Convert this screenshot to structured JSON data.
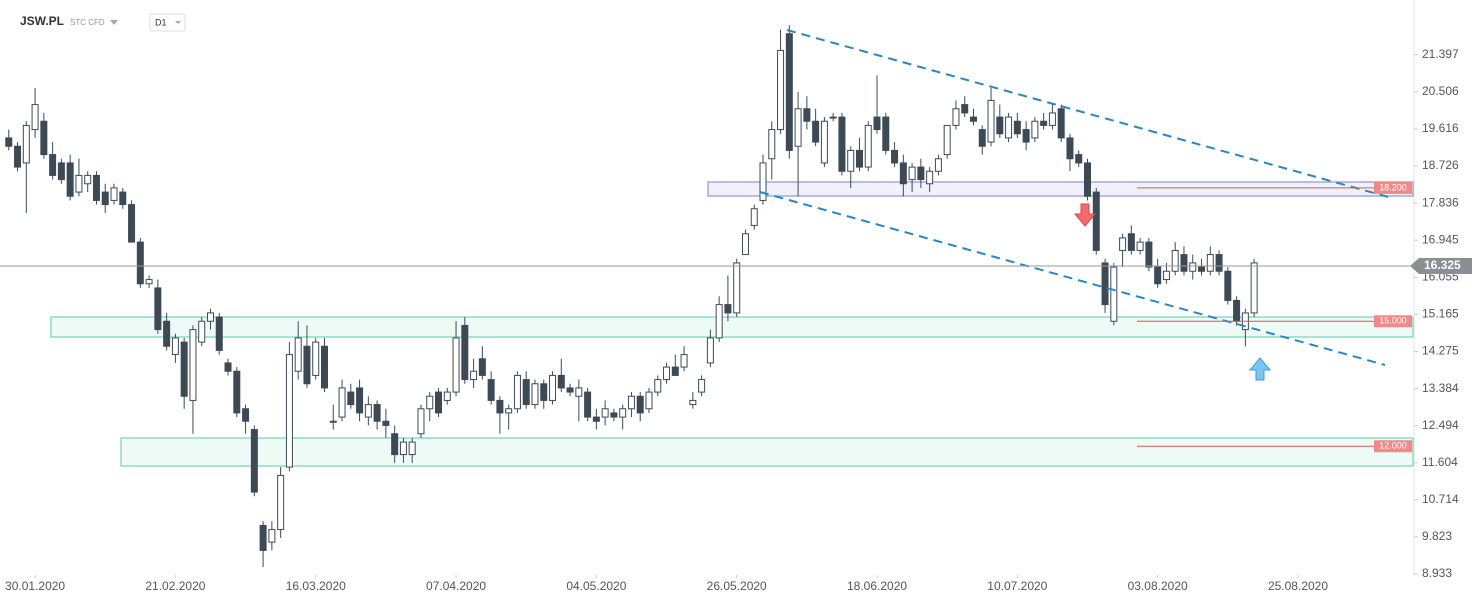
{
  "header": {
    "symbol": "JSW.PL",
    "market": "STC CFD",
    "interval": "D1"
  },
  "chart_data": {
    "type": "candlestick",
    "xlim": [
      -1,
      160
    ],
    "ylim": [
      8.55,
      22.71
    ],
    "xticks": [
      {
        "value": 3,
        "label": "30.01.2020"
      },
      {
        "value": 19,
        "label": "21.02.2020"
      },
      {
        "value": 35,
        "label": "16.03.2020"
      },
      {
        "value": 51,
        "label": "07.04.2020"
      },
      {
        "value": 67,
        "label": "04.05.2020"
      },
      {
        "value": 83,
        "label": "26.05.2020"
      },
      {
        "value": 99,
        "label": "18.06.2020"
      },
      {
        "value": 115,
        "label": "10.07.2020"
      },
      {
        "value": 131,
        "label": "03.08.2020"
      },
      {
        "value": 147,
        "label": "25.08.2020"
      }
    ],
    "yticks": [
      21.397,
      20.506,
      19.616,
      18.726,
      17.836,
      16.945,
      16.055,
      15.165,
      14.275,
      13.384,
      12.494,
      11.604,
      10.714,
      9.823,
      8.933
    ],
    "up_color": "#ffffff",
    "down_color": "#3d4a55",
    "last_price": 16.325,
    "levels": [
      {
        "value": 18.2,
        "label": "18.200"
      },
      {
        "value": 15,
        "label": "15.000"
      },
      {
        "value": 12,
        "label": "12.000"
      }
    ],
    "candles": [
      [
        19.4,
        19.6,
        19.1,
        19.2
      ],
      [
        19.2,
        19.3,
        18.6,
        18.7
      ],
      [
        18.8,
        19.8,
        17.6,
        19.7
      ],
      [
        19.6,
        20.6,
        19.4,
        20.2
      ],
      [
        19.8,
        20.0,
        18.9,
        19.0
      ],
      [
        19.0,
        19.3,
        18.4,
        18.5
      ],
      [
        18.8,
        18.9,
        18.3,
        18.4
      ],
      [
        18.8,
        19.0,
        17.9,
        18.0
      ],
      [
        18.1,
        18.9,
        18.0,
        18.5
      ],
      [
        18.3,
        18.6,
        18.1,
        18.5
      ],
      [
        18.5,
        18.6,
        17.8,
        17.9
      ],
      [
        18.1,
        18.3,
        17.6,
        17.8
      ],
      [
        17.9,
        18.3,
        17.8,
        18.2
      ],
      [
        18.1,
        18.2,
        17.7,
        17.8
      ],
      [
        17.8,
        17.9,
        16.9,
        16.9
      ],
      [
        16.9,
        17.0,
        15.8,
        15.9
      ],
      [
        15.9,
        16.1,
        15.8,
        16.0
      ],
      [
        15.8,
        16.0,
        14.7,
        14.8
      ],
      [
        15.0,
        15.2,
        14.3,
        14.4
      ],
      [
        14.2,
        14.7,
        14.0,
        14.6
      ],
      [
        14.5,
        14.6,
        12.9,
        13.2
      ],
      [
        13.1,
        14.9,
        12.3,
        14.8
      ],
      [
        14.5,
        15.1,
        14.4,
        15.0
      ],
      [
        15.0,
        15.3,
        14.8,
        15.2
      ],
      [
        15.1,
        15.2,
        14.2,
        14.3
      ],
      [
        14.0,
        14.1,
        13.7,
        13.8
      ],
      [
        13.8,
        13.9,
        12.7,
        12.8
      ],
      [
        12.9,
        13.0,
        12.3,
        12.6
      ],
      [
        12.4,
        12.5,
        10.8,
        10.9
      ],
      [
        10.1,
        10.2,
        9.1,
        9.5
      ],
      [
        9.7,
        10.2,
        9.5,
        10.0
      ],
      [
        10.0,
        11.5,
        9.8,
        11.3
      ],
      [
        11.5,
        14.5,
        11.4,
        14.2
      ],
      [
        13.8,
        15.0,
        13.6,
        14.6
      ],
      [
        14.4,
        14.9,
        13.4,
        13.5
      ],
      [
        13.7,
        14.6,
        13.6,
        14.5
      ],
      [
        14.4,
        14.6,
        13.3,
        13.4
      ],
      [
        12.6,
        13.0,
        12.4,
        12.6
      ],
      [
        12.7,
        13.6,
        12.6,
        13.4
      ],
      [
        13.3,
        13.5,
        12.9,
        13.0
      ],
      [
        13.4,
        13.6,
        12.6,
        12.8
      ],
      [
        12.7,
        13.2,
        12.5,
        13.0
      ],
      [
        13.0,
        13.1,
        12.4,
        12.6
      ],
      [
        12.6,
        12.9,
        12.2,
        12.5
      ],
      [
        12.3,
        12.5,
        11.6,
        11.8
      ],
      [
        11.8,
        12.2,
        11.6,
        12.1
      ],
      [
        11.8,
        12.2,
        11.6,
        12.1
      ],
      [
        12.3,
        13.0,
        12.2,
        12.9
      ],
      [
        12.9,
        13.3,
        12.6,
        13.2
      ],
      [
        13.3,
        13.4,
        12.7,
        12.8
      ],
      [
        13.1,
        13.4,
        13.0,
        13.3
      ],
      [
        13.3,
        15.0,
        13.2,
        14.6
      ],
      [
        14.9,
        15.1,
        13.5,
        13.6
      ],
      [
        13.6,
        14.1,
        13.4,
        13.8
      ],
      [
        14.1,
        14.4,
        13.6,
        13.7
      ],
      [
        13.6,
        13.8,
        13.0,
        13.1
      ],
      [
        13.1,
        13.2,
        12.3,
        12.8
      ],
      [
        12.8,
        13.0,
        12.4,
        12.9
      ],
      [
        12.9,
        13.8,
        12.8,
        13.7
      ],
      [
        13.6,
        13.8,
        12.9,
        13.0
      ],
      [
        13.0,
        13.6,
        12.9,
        13.5
      ],
      [
        13.5,
        13.6,
        12.9,
        13.1
      ],
      [
        13.1,
        13.8,
        13.0,
        13.7
      ],
      [
        13.7,
        14.1,
        13.3,
        13.4
      ],
      [
        13.4,
        13.5,
        13.2,
        13.3
      ],
      [
        13.2,
        13.6,
        12.6,
        13.4
      ],
      [
        13.3,
        13.4,
        12.6,
        12.7
      ],
      [
        12.7,
        12.9,
        12.4,
        12.6
      ],
      [
        12.7,
        13.1,
        12.5,
        12.9
      ],
      [
        12.8,
        12.9,
        12.6,
        12.7
      ],
      [
        12.7,
        13.0,
        12.4,
        12.9
      ],
      [
        12.9,
        13.3,
        12.7,
        13.2
      ],
      [
        13.2,
        13.3,
        12.6,
        12.8
      ],
      [
        12.9,
        13.4,
        12.8,
        13.3
      ],
      [
        13.3,
        13.7,
        13.2,
        13.6
      ],
      [
        13.6,
        14.0,
        13.5,
        13.9
      ],
      [
        13.9,
        14.2,
        13.7,
        13.7
      ],
      [
        13.9,
        14.4,
        13.8,
        14.2
      ],
      [
        13.0,
        13.3,
        12.9,
        13.1
      ],
      [
        13.3,
        13.7,
        13.2,
        13.6
      ],
      [
        14.0,
        14.8,
        13.9,
        14.6
      ],
      [
        14.6,
        15.6,
        14.5,
        15.4
      ],
      [
        15.4,
        16.1,
        15.0,
        15.2
      ],
      [
        15.2,
        16.5,
        15.1,
        16.4
      ],
      [
        16.6,
        17.2,
        16.6,
        17.1
      ],
      [
        17.3,
        17.8,
        17.2,
        17.7
      ],
      [
        17.9,
        19.0,
        17.8,
        18.8
      ],
      [
        18.9,
        19.8,
        18.4,
        19.6
      ],
      [
        19.6,
        22.0,
        19.5,
        21.5
      ],
      [
        21.9,
        22.1,
        18.9,
        19.1
      ],
      [
        19.2,
        20.5,
        18.0,
        20.1
      ],
      [
        20.1,
        20.4,
        19.6,
        19.8
      ],
      [
        19.8,
        20.1,
        19.2,
        19.3
      ],
      [
        18.8,
        19.9,
        18.7,
        19.8
      ],
      [
        19.9,
        20.0,
        19.8,
        19.9
      ],
      [
        19.9,
        20.0,
        18.5,
        18.6
      ],
      [
        18.6,
        19.2,
        18.2,
        19.1
      ],
      [
        19.1,
        19.4,
        18.6,
        18.7
      ],
      [
        18.7,
        19.8,
        18.6,
        19.7
      ],
      [
        19.9,
        20.9,
        19.5,
        19.6
      ],
      [
        19.9,
        20.0,
        19.0,
        19.1
      ],
      [
        19.1,
        19.3,
        18.7,
        18.8
      ],
      [
        18.8,
        19.0,
        18.0,
        18.3
      ],
      [
        18.4,
        18.8,
        18.1,
        18.7
      ],
      [
        18.7,
        18.9,
        18.2,
        18.4
      ],
      [
        18.3,
        18.7,
        18.1,
        18.6
      ],
      [
        18.6,
        19.0,
        18.5,
        18.9
      ],
      [
        19.0,
        19.7,
        18.9,
        19.7
      ],
      [
        19.7,
        20.3,
        19.6,
        20.1
      ],
      [
        20.2,
        20.4,
        19.9,
        20.0
      ],
      [
        19.9,
        20.1,
        19.7,
        19.8
      ],
      [
        19.6,
        19.7,
        19.0,
        19.2
      ],
      [
        19.3,
        20.6,
        19.2,
        20.3
      ],
      [
        19.9,
        20.2,
        19.4,
        19.5
      ],
      [
        19.4,
        20.0,
        19.3,
        19.9
      ],
      [
        19.8,
        20.0,
        19.4,
        19.5
      ],
      [
        19.6,
        19.8,
        19.1,
        19.3
      ],
      [
        19.4,
        19.9,
        19.3,
        19.8
      ],
      [
        19.8,
        20.0,
        19.6,
        19.7
      ],
      [
        19.7,
        20.2,
        19.6,
        20.0
      ],
      [
        20.1,
        20.2,
        19.3,
        19.4
      ],
      [
        19.4,
        19.5,
        18.6,
        18.9
      ],
      [
        19.0,
        19.1,
        18.7,
        18.8
      ],
      [
        18.8,
        18.9,
        17.9,
        18.0
      ],
      [
        18.1,
        18.2,
        16.6,
        16.7
      ],
      [
        16.4,
        16.5,
        15.2,
        15.4
      ],
      [
        15.0,
        16.4,
        14.9,
        16.3
      ],
      [
        16.7,
        17.1,
        16.3,
        17.0
      ],
      [
        17.1,
        17.3,
        16.6,
        16.7
      ],
      [
        16.7,
        17.0,
        16.6,
        16.9
      ],
      [
        16.9,
        17.0,
        16.2,
        16.3
      ],
      [
        16.3,
        16.5,
        15.8,
        15.9
      ],
      [
        16.0,
        16.4,
        15.9,
        16.2
      ],
      [
        16.2,
        16.9,
        16.1,
        16.7
      ],
      [
        16.6,
        16.8,
        16.1,
        16.2
      ],
      [
        16.2,
        16.6,
        16.0,
        16.4
      ],
      [
        16.3,
        16.5,
        16.1,
        16.2
      ],
      [
        16.2,
        16.8,
        16.1,
        16.6
      ],
      [
        16.6,
        16.7,
        16.1,
        16.2
      ],
      [
        16.2,
        16.3,
        15.4,
        15.5
      ],
      [
        15.5,
        15.6,
        14.9,
        15.0
      ],
      [
        14.8,
        15.3,
        14.4,
        15.2
      ],
      [
        15.2,
        16.5,
        15.1,
        16.4
      ]
    ]
  }
}
